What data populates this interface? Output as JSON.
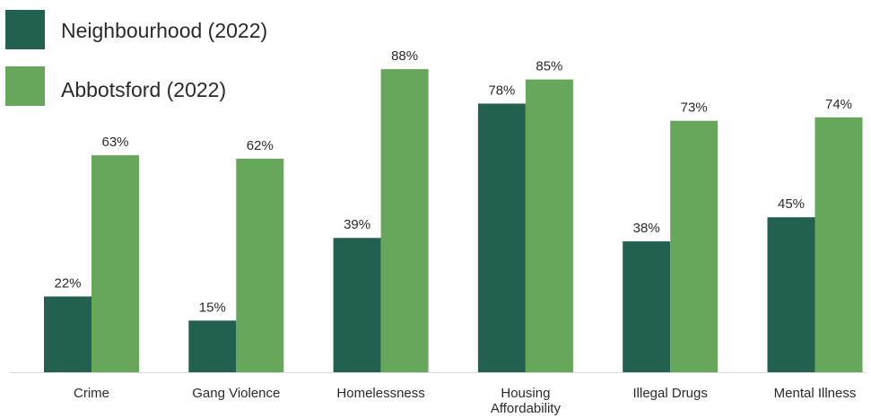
{
  "chart_data": {
    "type": "bar",
    "categories": [
      "Crime",
      "Gang Violence",
      "Homelessness",
      "Housing Affordability",
      "Illegal Drugs",
      "Mental Illness"
    ],
    "category_lines": [
      [
        "Crime"
      ],
      [
        "Gang Violence"
      ],
      [
        "Homelessness"
      ],
      [
        "Housing",
        "Affordability"
      ],
      [
        "Illegal Drugs"
      ],
      [
        "Mental Illness"
      ]
    ],
    "series": [
      {
        "name": "Neighbourhood (2022)",
        "color": "#226150",
        "values": [
          22,
          15,
          39,
          78,
          38,
          45
        ],
        "labels": [
          "22%",
          "15%",
          "39%",
          "78%",
          "38%",
          "45%"
        ]
      },
      {
        "name": "Abbotsford (2022)",
        "color": "#66a75b",
        "values": [
          63,
          62,
          88,
          85,
          73,
          74
        ],
        "labels": [
          "63%",
          "62%",
          "88%",
          "85%",
          "73%",
          "74%"
        ]
      }
    ],
    "legend_position": "top-left",
    "ylim": [
      0,
      100
    ],
    "grid": false
  }
}
